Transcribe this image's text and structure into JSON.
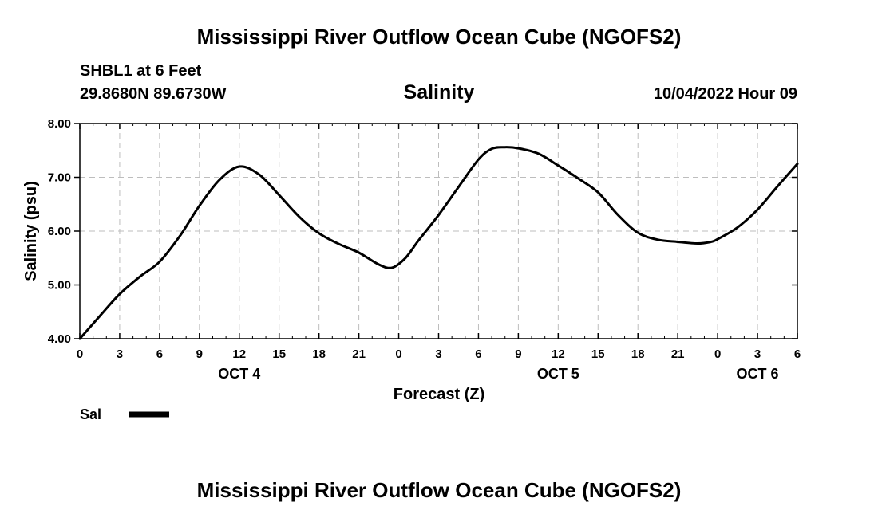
{
  "page": {
    "title_top": "Mississippi River Outflow Ocean Cube (NGOFS2)",
    "title_bottom": "Mississippi River Outflow Ocean Cube (NGOFS2)",
    "station": "SHBL1 at 6 Feet",
    "coords": "29.8680N  89.6730W",
    "date": "10/04/2022 Hour 09",
    "legend_label": "Sal"
  },
  "chart_data": {
    "type": "line",
    "title": "Salinity",
    "xlabel": "Forecast (Z)",
    "ylabel": "Salinity (psu)",
    "xlim": [
      0,
      54
    ],
    "ylim": [
      4.0,
      8.0
    ],
    "grid": true,
    "legend": "bottom-left",
    "x_ticks": [
      0,
      3,
      6,
      9,
      12,
      15,
      18,
      21,
      24,
      27,
      30,
      33,
      36,
      39,
      42,
      45,
      48,
      51,
      54
    ],
    "x_tick_labels": [
      "0",
      "3",
      "6",
      "9",
      "12",
      "15",
      "18",
      "21",
      "0",
      "3",
      "6",
      "9",
      "12",
      "15",
      "18",
      "21",
      "0",
      "3",
      "6"
    ],
    "y_ticks": [
      4.0,
      5.0,
      6.0,
      7.0,
      8.0
    ],
    "y_tick_labels": [
      "4.00",
      "5.00",
      "6.00",
      "7.00",
      "8.00"
    ],
    "day_labels": [
      {
        "x": 12,
        "label": "OCT 4"
      },
      {
        "x": 36,
        "label": "OCT 5"
      },
      {
        "x": 51,
        "label": "OCT 6"
      }
    ],
    "series": [
      {
        "name": "Sal",
        "color": "#000000",
        "x": [
          0,
          1.5,
          3,
          4.5,
          6,
          7.5,
          9,
          10.5,
          12,
          13.5,
          15,
          16.5,
          18,
          19.5,
          21,
          22.5,
          23.5,
          24.5,
          25.5,
          27,
          28.5,
          30,
          31,
          32,
          33,
          34.5,
          36,
          37.5,
          39,
          40.5,
          42,
          43.5,
          45,
          46.5,
          47.5,
          48,
          49.5,
          51,
          52.5,
          54
        ],
        "values": [
          4.0,
          4.42,
          4.83,
          5.15,
          5.43,
          5.9,
          6.47,
          6.95,
          7.2,
          7.05,
          6.67,
          6.27,
          5.96,
          5.76,
          5.6,
          5.38,
          5.32,
          5.5,
          5.83,
          6.3,
          6.82,
          7.33,
          7.53,
          7.56,
          7.54,
          7.44,
          7.22,
          6.98,
          6.72,
          6.3,
          5.97,
          5.84,
          5.8,
          5.77,
          5.8,
          5.85,
          6.07,
          6.4,
          6.83,
          7.25
        ]
      }
    ]
  }
}
